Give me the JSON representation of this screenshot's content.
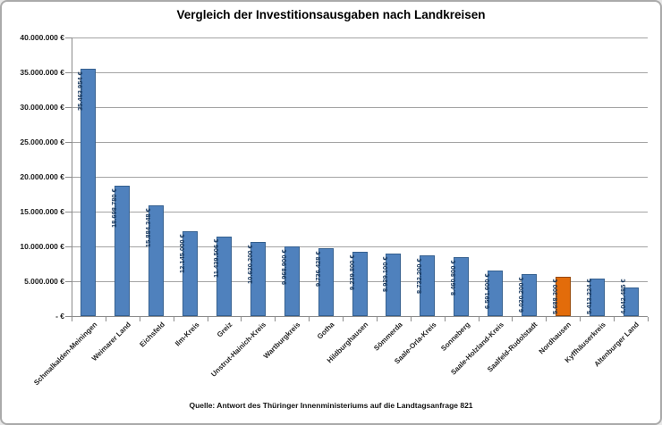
{
  "title": "Vergleich der Investitionsausgaben  nach Landkreisen",
  "source": "Quelle: Antwort des Thüringer Innenministeriums auf die Landtagsanfrage  821",
  "chart_data": {
    "type": "bar",
    "title": "Vergleich der Investitionsausgaben  nach Landkreisen",
    "xlabel": "",
    "ylabel": "",
    "categories": [
      "Schmalkalden-Meiningen",
      "Weimarer Land",
      "Eichsfeld",
      "Ilm-Kreis",
      "Greiz",
      "Unstrut-Hainich-Kreis",
      "Wartburgkreis",
      "Gotha",
      "Hildburghausen",
      "Sömmerda",
      "Saale-Orla-Kreis",
      "Sonneberg",
      "Saale-Holzland-Kreis",
      "Saalfeld-Rudolstadt",
      "Nordhausen",
      "Kyffhäuserkreis",
      "Altenburger Land"
    ],
    "values": [
      35463954,
      18698780,
      15884348,
      12145000,
      11439506,
      10620200,
      9968900,
      9736428,
      9239800,
      8929100,
      8732200,
      8460800,
      6591600,
      6020200,
      5688300,
      5413224,
      4042485
    ],
    "value_labels": [
      "35.463.954 €",
      "18.698.780 €",
      "15.884.348 €",
      "12.145.000 €",
      "11.439.506 €",
      "10.620.200 €",
      "9.968.900 €",
      "9.736.428 €",
      "9.239.800 €",
      "8.929.100 €",
      "8.732.200 €",
      "8.460.800 €",
      "6.591.600 €",
      "6.020.200 €",
      "5.688.300 €",
      "5.413.224 €",
      "4.042.485 €"
    ],
    "highlight_index": 14,
    "y_axis": {
      "min": 0,
      "max": 40000000,
      "step": 5000000,
      "tick_labels": [
        "- €",
        "5.000.000 €",
        "10.000.000 €",
        "15.000.000 €",
        "20.000.000 €",
        "25.000.000 €",
        "30.000.000 €",
        "35.000.000 €",
        "40.000.000 €"
      ]
    },
    "grid": true,
    "legend": false,
    "colors": {
      "bar_fill": "#4F81BD",
      "bar_border": "#35608F",
      "highlight_fill": "#E36C0A",
      "highlight_border": "#974806",
      "value_label_text": "#16365C",
      "gridline": "#a3a3a3",
      "axis_line": "#8c8c8c"
    }
  }
}
